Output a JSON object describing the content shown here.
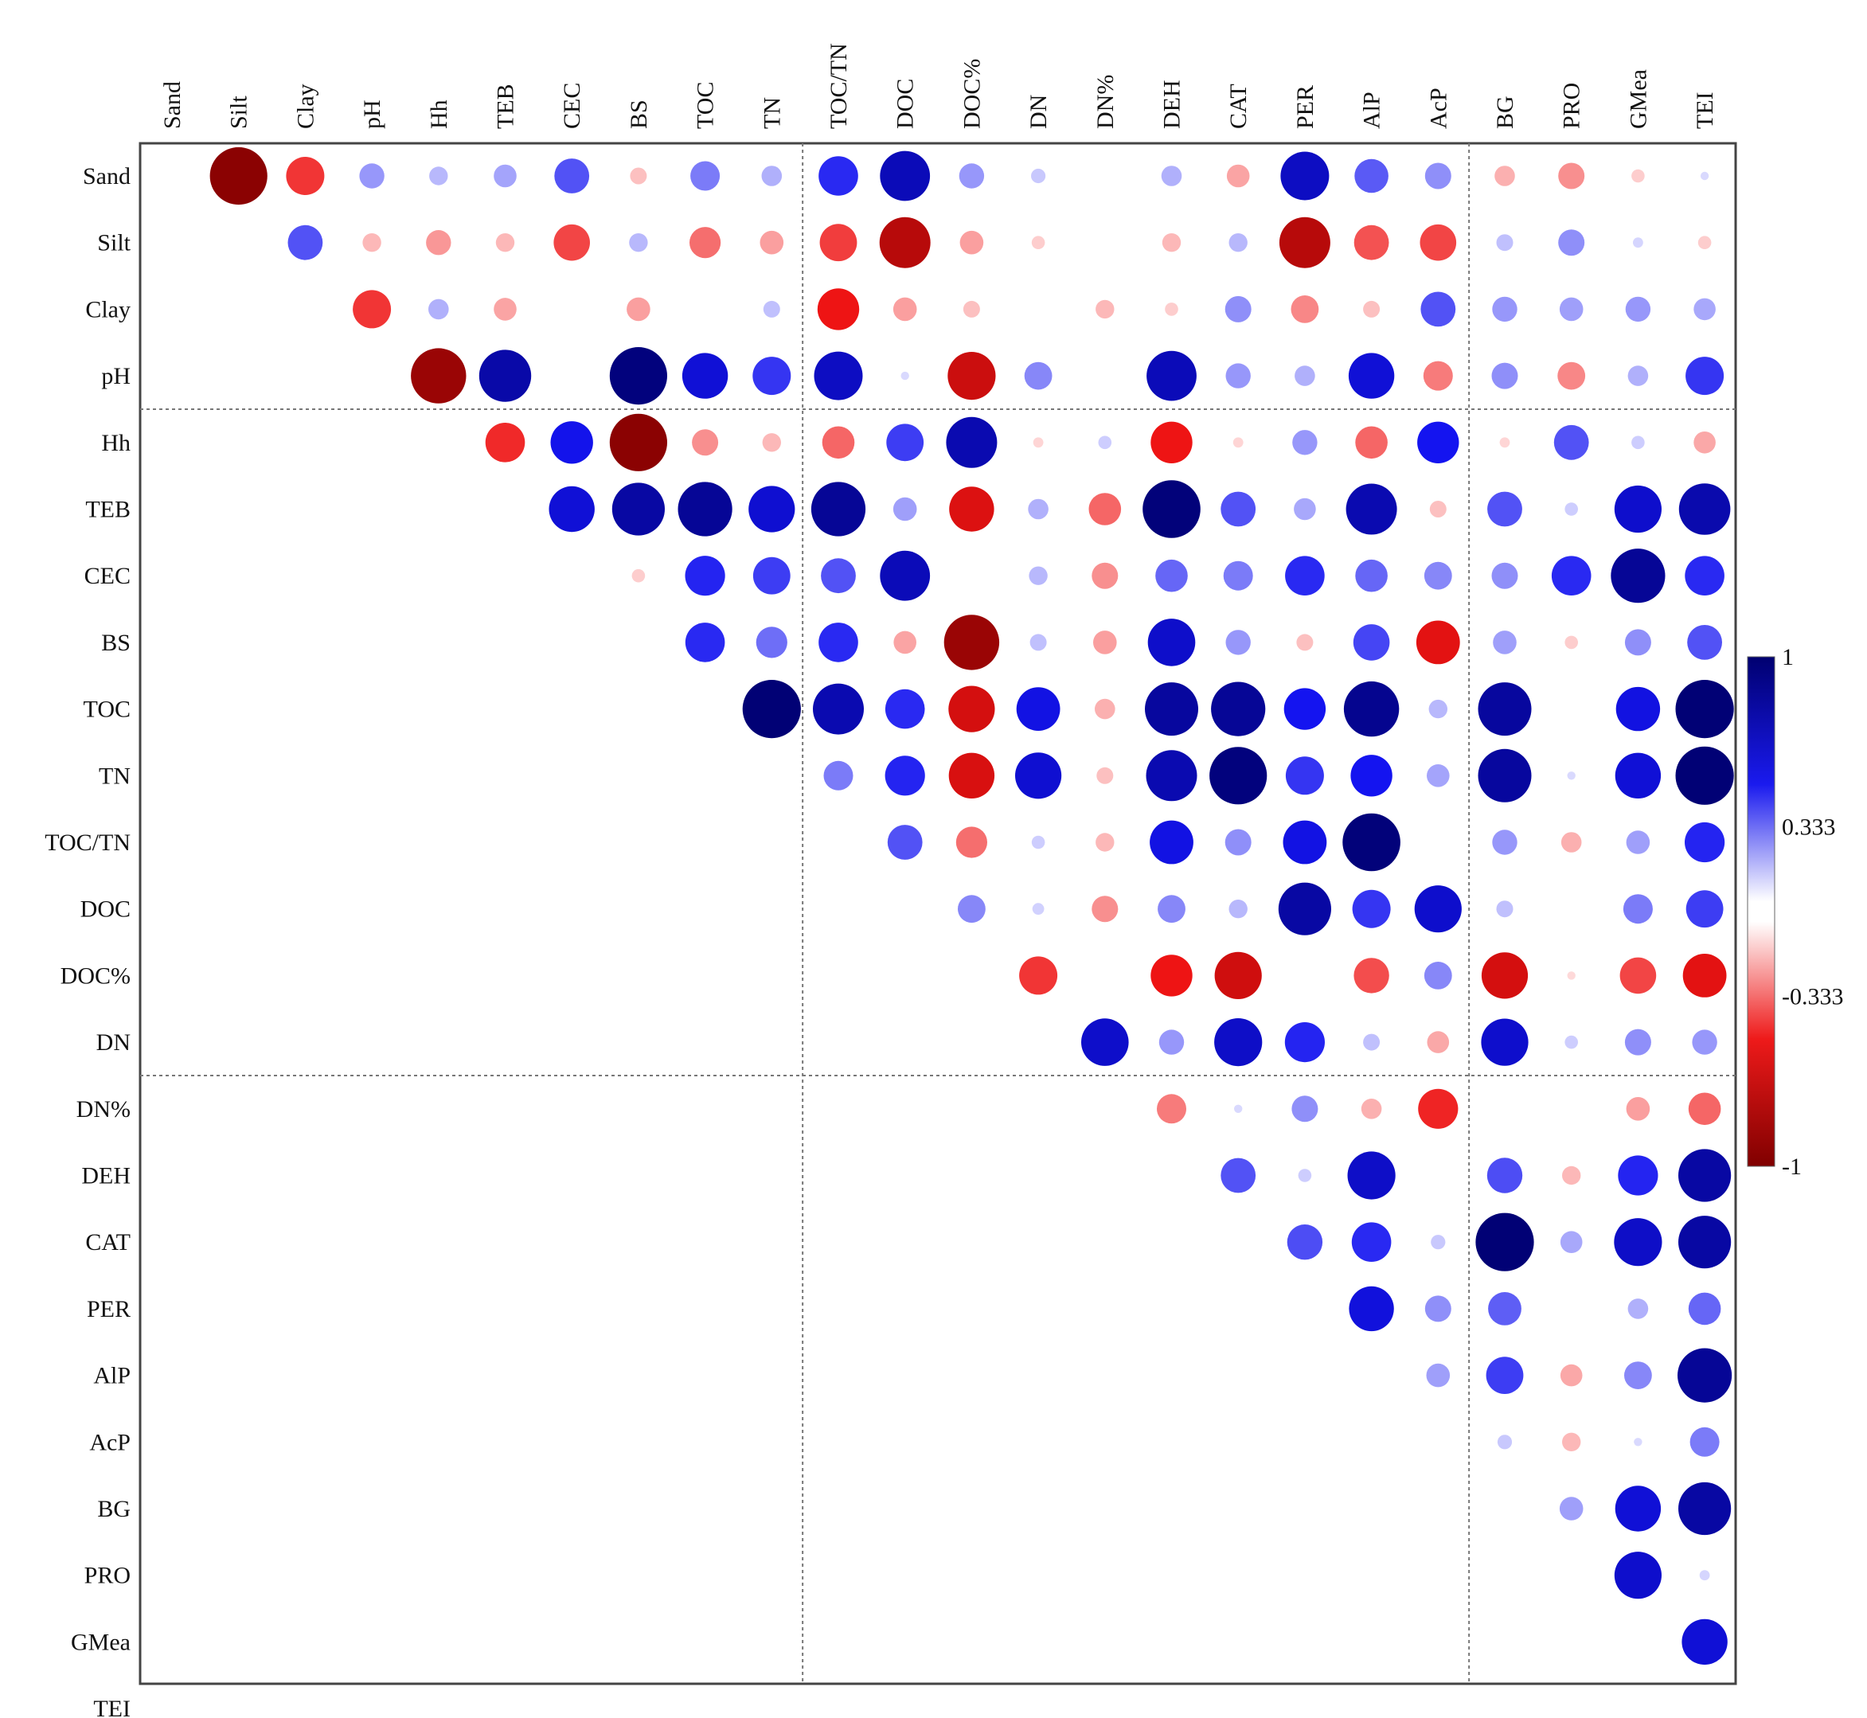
{
  "chart_data": {
    "type": "heatmap",
    "subtype": "correlation-circles-upper-triangle",
    "variables": [
      "Sand",
      "Silt",
      "Clay",
      "pH",
      "Hh",
      "TEB",
      "CEC",
      "BS",
      "TOC",
      "TN",
      "TOC/TN",
      "DOC",
      "DOC%",
      "DN",
      "DN%",
      "DEH",
      "CAT",
      "PER",
      "AlP",
      "AcP",
      "BG",
      "PRO",
      "GMea",
      "TEI"
    ],
    "matrix": [
      [
        1,
        -0.95,
        -0.42,
        0.18,
        0.1,
        0.15,
        0.35,
        -0.08,
        0.25,
        0.12,
        0.45,
        0.72,
        0.18,
        0.06,
        0,
        0.12,
        -0.15,
        0.68,
        0.33,
        0.2,
        -0.12,
        -0.2,
        -0.05,
        0.02
      ],
      [
        -0.95,
        1,
        0.35,
        -0.1,
        -0.18,
        -0.1,
        -0.38,
        0.1,
        -0.28,
        -0.16,
        -0.4,
        -0.75,
        -0.16,
        -0.05,
        0,
        -0.1,
        0.1,
        -0.75,
        -0.35,
        -0.38,
        0.08,
        0.2,
        0.03,
        -0.05
      ],
      [
        -0.42,
        0.35,
        1,
        -0.42,
        0.12,
        -0.15,
        0,
        -0.16,
        0,
        0.08,
        -0.5,
        -0.16,
        -0.08,
        0,
        -0.1,
        -0.05,
        0.2,
        -0.22,
        -0.08,
        0.35,
        0.18,
        0.16,
        0.18,
        0.14
      ],
      [
        0.18,
        -0.1,
        -0.42,
        1,
        -0.88,
        0.78,
        0,
        0.95,
        0.6,
        0.42,
        0.68,
        0.02,
        -0.66,
        0.22,
        0,
        0.72,
        0.18,
        0.12,
        0.6,
        -0.25,
        0.2,
        -0.22,
        0.12,
        0.42
      ],
      [
        0.1,
        -0.18,
        0.12,
        -0.88,
        1,
        -0.45,
        0.52,
        -0.95,
        -0.2,
        -0.1,
        -0.3,
        0.4,
        0.75,
        -0.03,
        0.05,
        -0.5,
        -0.03,
        0.18,
        -0.3,
        0.5,
        -0.03,
        0.35,
        0.05,
        -0.14
      ],
      [
        0.15,
        -0.1,
        -0.15,
        0.78,
        -0.45,
        1,
        0.6,
        0.8,
        0.85,
        0.62,
        0.85,
        0.16,
        -0.58,
        0.12,
        -0.3,
        0.96,
        0.35,
        0.14,
        0.75,
        -0.08,
        0.35,
        0.05,
        0.64,
        0.76
      ],
      [
        0.35,
        -0.38,
        0,
        0,
        0.52,
        0.6,
        1,
        -0.05,
        0.46,
        0.4,
        0.35,
        0.72,
        0,
        0.1,
        -0.2,
        0.3,
        0.25,
        0.45,
        0.3,
        0.22,
        0.2,
        0.45,
        0.85,
        0.45
      ],
      [
        -0.08,
        0.1,
        -0.16,
        0.95,
        -0.95,
        0.8,
        -0.05,
        1,
        0.45,
        0.28,
        0.45,
        -0.15,
        -0.88,
        0.08,
        -0.16,
        0.65,
        0.18,
        -0.08,
        0.38,
        -0.55,
        0.16,
        -0.05,
        0.2,
        0.35
      ],
      [
        0.25,
        -0.28,
        0,
        0.6,
        -0.2,
        0.85,
        0.46,
        0.45,
        1,
        0.98,
        0.75,
        0.45,
        -0.62,
        0.55,
        -0.12,
        0.82,
        0.85,
        0.5,
        0.88,
        0.1,
        0.82,
        0,
        0.56,
        0.98
      ],
      [
        0.12,
        -0.16,
        0.08,
        0.42,
        -0.1,
        0.62,
        0.4,
        0.28,
        0.98,
        1,
        0.25,
        0.46,
        -0.6,
        0.62,
        -0.08,
        0.75,
        0.95,
        0.42,
        0.5,
        0.15,
        0.82,
        0.02,
        0.6,
        0.98
      ],
      [
        0.45,
        -0.4,
        -0.5,
        0.68,
        -0.3,
        0.85,
        0.35,
        0.45,
        0.75,
        0.25,
        1,
        0.35,
        -0.28,
        0.05,
        -0.1,
        0.55,
        0.2,
        0.55,
        0.96,
        0,
        0.18,
        -0.12,
        0.16,
        0.46
      ],
      [
        0.72,
        -0.75,
        -0.16,
        0.02,
        0.4,
        0.16,
        0.72,
        -0.15,
        0.45,
        0.46,
        0.35,
        1,
        0.22,
        0.04,
        -0.2,
        0.22,
        0.1,
        0.8,
        0.42,
        0.64,
        0.08,
        0,
        0.25,
        0.4
      ],
      [
        0.18,
        -0.16,
        -0.08,
        -0.66,
        0.75,
        -0.58,
        0,
        -0.88,
        -0.62,
        -0.6,
        -0.28,
        0.22,
        1,
        -0.42,
        0,
        -0.5,
        -0.64,
        0,
        -0.36,
        0.22,
        -0.62,
        -0.02,
        -0.38,
        -0.55
      ],
      [
        0.06,
        -0.05,
        0,
        0.22,
        -0.03,
        0.12,
        0.1,
        0.08,
        0.55,
        0.62,
        0.05,
        0.04,
        -0.42,
        1,
        0.65,
        0.18,
        0.66,
        0.46,
        0.08,
        -0.14,
        0.64,
        0.05,
        0.2,
        0.18
      ],
      [
        0,
        0,
        -0.1,
        0,
        0.05,
        -0.3,
        -0.2,
        -0.16,
        -0.12,
        -0.08,
        -0.1,
        -0.2,
        0,
        0.65,
        1,
        -0.25,
        0.02,
        0.2,
        -0.12,
        -0.46,
        0,
        0,
        -0.16,
        -0.3
      ],
      [
        0.12,
        -0.1,
        -0.05,
        0.72,
        -0.5,
        0.96,
        0.3,
        0.65,
        0.82,
        0.75,
        0.55,
        0.22,
        -0.5,
        0.18,
        -0.25,
        1,
        0.35,
        0.05,
        0.66,
        0,
        0.36,
        -0.1,
        0.46,
        0.8
      ],
      [
        -0.15,
        0.1,
        0.2,
        0.18,
        -0.03,
        0.35,
        0.25,
        0.18,
        0.85,
        0.95,
        0.2,
        0.1,
        -0.64,
        0.66,
        0.02,
        0.35,
        1,
        0.36,
        0.45,
        0.06,
        0.98,
        0.14,
        0.66,
        0.8
      ],
      [
        0.68,
        -0.75,
        -0.22,
        0.12,
        0.18,
        0.14,
        0.45,
        -0.08,
        0.5,
        0.42,
        0.55,
        0.8,
        0,
        0.46,
        0.2,
        0.05,
        0.36,
        1,
        0.58,
        0.2,
        0.32,
        0,
        0.12,
        0.3
      ],
      [
        0.33,
        -0.35,
        -0.08,
        0.6,
        -0.3,
        0.75,
        0.3,
        0.38,
        0.88,
        0.5,
        0.96,
        0.42,
        -0.36,
        0.08,
        -0.12,
        0.66,
        0.45,
        0.58,
        1,
        0.16,
        0.4,
        -0.14,
        0.22,
        0.85
      ],
      [
        0.2,
        -0.38,
        0.35,
        -0.25,
        0.5,
        -0.08,
        0.22,
        -0.55,
        0.1,
        0.15,
        0,
        0.64,
        0.22,
        -0.14,
        -0.46,
        0,
        0.06,
        0.2,
        0.16,
        1,
        0.06,
        -0.1,
        0.02,
        0.25
      ],
      [
        -0.12,
        0.08,
        0.18,
        0.2,
        -0.03,
        0.35,
        0.2,
        0.16,
        0.82,
        0.82,
        0.18,
        0.08,
        -0.62,
        0.64,
        0,
        0.36,
        0.98,
        0.32,
        0.4,
        0.06,
        1,
        0.16,
        0.6,
        0.8
      ],
      [
        -0.2,
        0.2,
        0.16,
        -0.22,
        0.35,
        0.05,
        0.45,
        -0.05,
        0,
        0.02,
        -0.12,
        0,
        -0.02,
        0.05,
        0,
        -0.1,
        0.14,
        0,
        -0.14,
        -0.1,
        0.16,
        1,
        0.64,
        0.03
      ],
      [
        -0.05,
        0.03,
        0.18,
        0.12,
        0.05,
        0.64,
        0.85,
        0.2,
        0.56,
        0.6,
        0.16,
        0.25,
        -0.38,
        0.2,
        -0.16,
        0.46,
        0.66,
        0.12,
        0.22,
        0.02,
        0.6,
        0.64,
        1,
        0.6
      ],
      [
        0.02,
        -0.05,
        0.14,
        0.42,
        -0.14,
        0.76,
        0.45,
        0.35,
        0.98,
        0.98,
        0.46,
        0.4,
        -0.55,
        0.18,
        -0.3,
        0.8,
        0.8,
        0.3,
        0.85,
        0.25,
        0.8,
        0.03,
        0.6,
        1
      ]
    ],
    "display": "upper-triangle-excluding-diagonal",
    "group_separators_after": [
      "pH",
      "DN"
    ],
    "column_group_separators_after": [
      "TN",
      "AcP"
    ],
    "color_scale": {
      "range": [
        -1,
        1
      ],
      "tick_labels": [
        "1",
        "0.333",
        "-0.333",
        "-1"
      ],
      "tick_values": [
        1,
        0.333,
        -0.333,
        -1
      ],
      "positive_color": "#0000d8",
      "strong_positive_color": "#000070",
      "negative_color": "#ee1111",
      "strong_negative_color": "#800000",
      "zero_color": "#ffffff"
    },
    "legend_placement": "right",
    "grid": false
  }
}
